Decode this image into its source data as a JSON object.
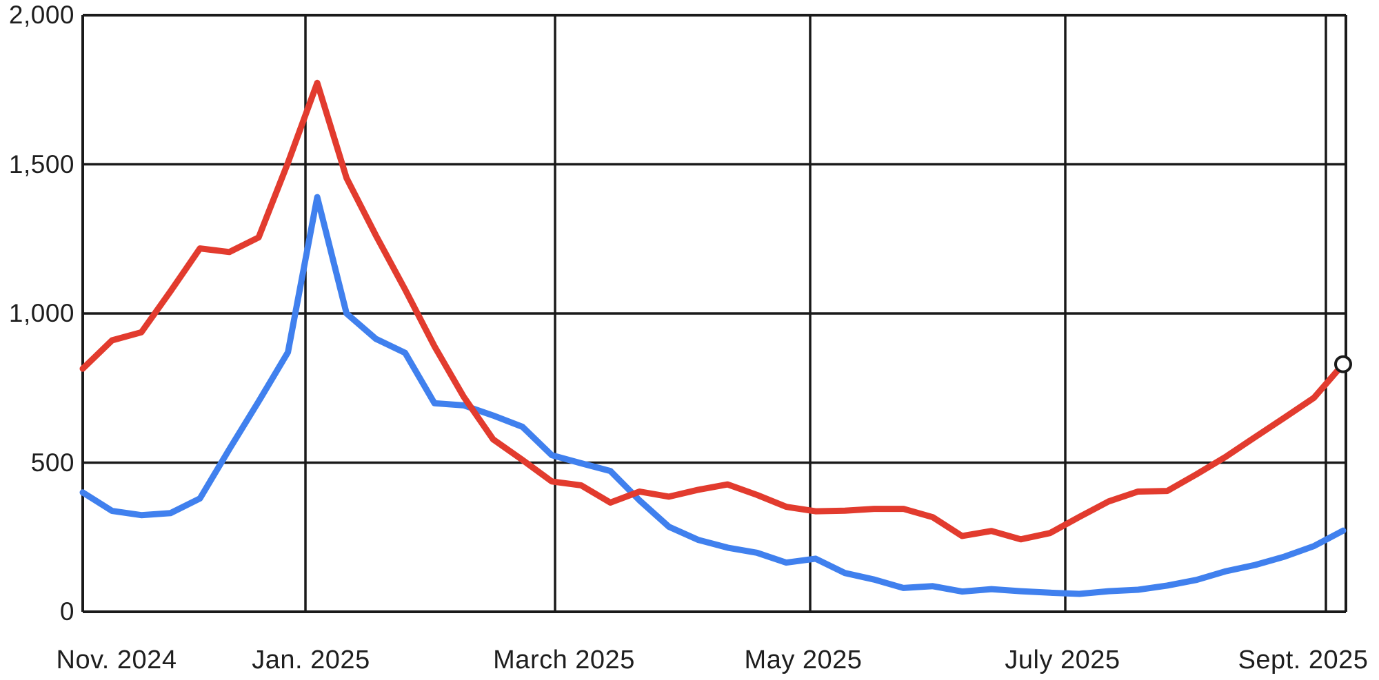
{
  "chart_data": {
    "type": "line",
    "title": "",
    "legend": "none",
    "grid": "on",
    "frequency": "weekly",
    "x_axis": {
      "labels": [
        "Nov. 2024",
        "Jan. 2025",
        "March 2025",
        "May 2025",
        "July 2025",
        "Sept. 2025"
      ]
    },
    "y_axis": {
      "tick_labels": [
        "2,000",
        "1,500",
        "1,000",
        "500",
        "0"
      ],
      "tick_values": [
        2000,
        1500,
        1000,
        500,
        0
      ],
      "range": [
        0,
        2000
      ]
    },
    "series": [
      {
        "name": "red",
        "color": "#e23b2e",
        "end_marker": "open-circle",
        "values": [
          815,
          910,
          937,
          1075,
          1218,
          1206,
          1255,
          1505,
          1773,
          1454,
          1262,
          1080,
          890,
          720,
          578,
          509,
          437,
          424,
          366,
          403,
          386,
          409,
          427,
          392,
          352,
          337,
          339,
          345,
          345,
          317,
          254,
          271,
          243,
          264,
          318,
          370,
          403,
          405,
          461,
          520,
          586,
          651,
          717,
          830
        ]
      },
      {
        "name": "blue",
        "color": "#4080ee",
        "end_marker": "none",
        "values": [
          400,
          338,
          324,
          331,
          380,
          545,
          705,
          870,
          1390,
          1000,
          915,
          868,
          699,
          692,
          658,
          620,
          525,
          498,
          472,
          373,
          285,
          241,
          215,
          198,
          165,
          178,
          130,
          108,
          80,
          86,
          68,
          76,
          69,
          64,
          60,
          69,
          74,
          88,
          107,
          136,
          157,
          185,
          220,
          272
        ]
      }
    ],
    "colors": {
      "grid": "#1a1a1a",
      "text": "#1e1e1e",
      "background": "#ffffff"
    }
  }
}
